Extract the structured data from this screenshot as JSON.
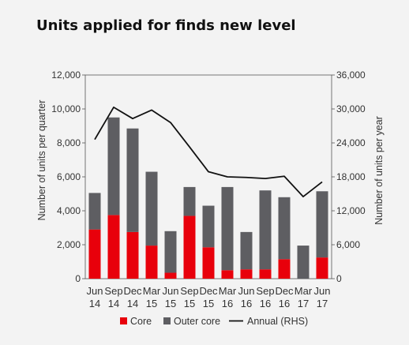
{
  "chart_data": {
    "type": "bar",
    "title": "Units applied for finds new level",
    "categories": [
      [
        "Jun",
        "14"
      ],
      [
        "Sep",
        "14"
      ],
      [
        "Dec",
        "14"
      ],
      [
        "Mar",
        "15"
      ],
      [
        "Jun",
        "15"
      ],
      [
        "Sep",
        "15"
      ],
      [
        "Dec",
        "15"
      ],
      [
        "Mar",
        "16"
      ],
      [
        "Jun",
        "16"
      ],
      [
        "Sep",
        "16"
      ],
      [
        "Dec",
        "16"
      ],
      [
        "Mar",
        "17"
      ],
      [
        "Jun",
        "17"
      ]
    ],
    "ylabel": "Number of units per quarter",
    "y2label": "Number of units per year",
    "ylim": [
      0,
      12000
    ],
    "y2lim": [
      0,
      36000
    ],
    "yticks": [
      "0",
      "2,000",
      "4,000",
      "6,000",
      "8,000",
      "10,000",
      "12,000"
    ],
    "y2ticks": [
      "0",
      "6,000",
      "12,000",
      "18,000",
      "24,000",
      "30,000",
      "36,000"
    ],
    "stacked": true,
    "series": [
      {
        "name": "Core",
        "kind": "bar",
        "axis": "left",
        "color": "#e8000b",
        "values": [
          2900,
          3750,
          2750,
          1950,
          350,
          3700,
          1850,
          500,
          550,
          550,
          1150,
          0,
          1250
        ]
      },
      {
        "name": "Outer core",
        "kind": "bar",
        "axis": "left",
        "color": "#5e5e62",
        "values": [
          2150,
          5750,
          6100,
          4350,
          2450,
          1700,
          2450,
          4900,
          2200,
          4650,
          3650,
          1950,
          3900
        ]
      },
      {
        "name": "Annual (RHS)",
        "kind": "line",
        "axis": "right",
        "color": "#111111",
        "values": [
          24600,
          30300,
          28300,
          29800,
          27600,
          23300,
          18900,
          18000,
          17900,
          17700,
          18100,
          14500,
          17100
        ]
      }
    ],
    "legend": {
      "position": "bottom"
    },
    "grid": false
  }
}
